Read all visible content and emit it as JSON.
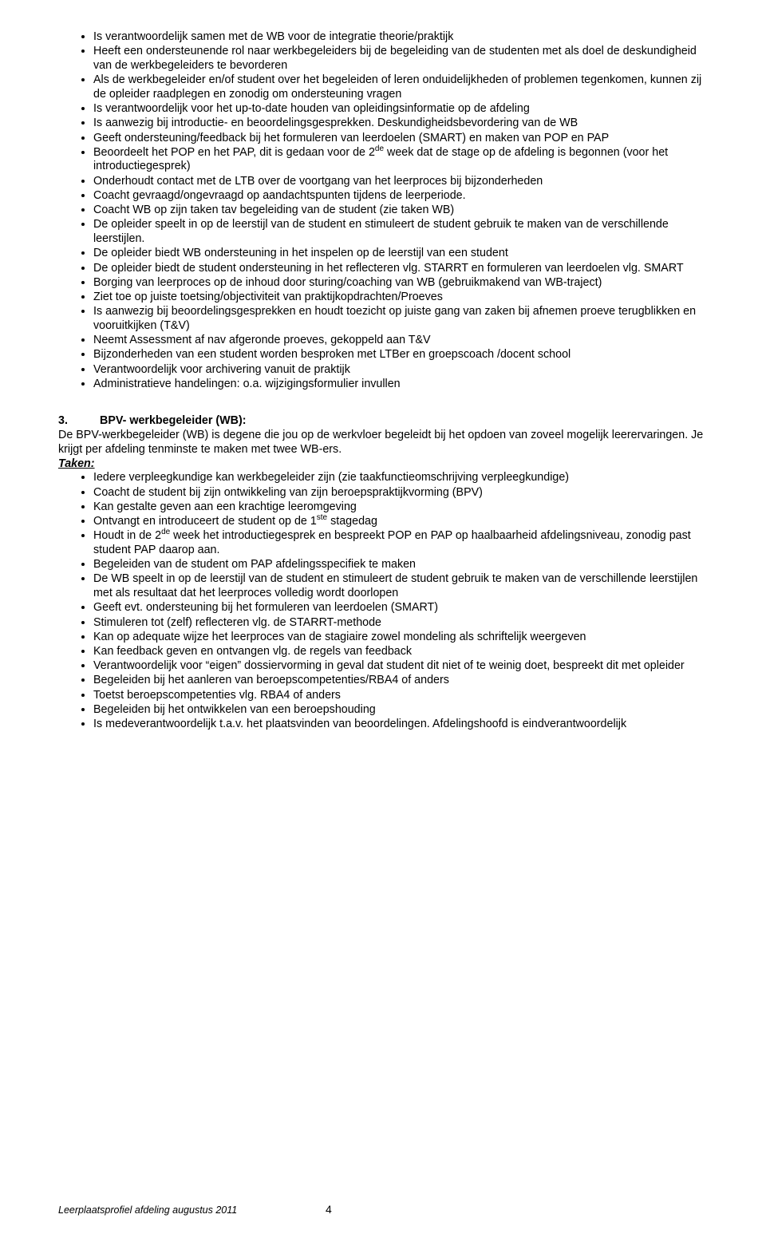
{
  "list1": [
    "Is verantwoordelijk samen met de WB voor de integratie theorie/praktijk",
    "Heeft een ondersteunende rol naar werkbegeleiders bij de begeleiding van de studenten met als doel de deskundigheid van de werkbegeleiders te bevorderen",
    "Als de werkbegeleider en/of student over het begeleiden of leren onduidelijkheden of problemen tegenkomen, kunnen zij de opleider raadplegen en zonodig om ondersteuning vragen",
    "Is verantwoordelijk voor het up-to-date houden van opleidingsinformatie op de afdeling",
    "Is aanwezig bij introductie- en beoordelingsgesprekken. Deskundigheidsbevordering van de WB",
    "Geeft  ondersteuning/feedback bij het formuleren van leerdoelen (SMART) en maken van POP en PAP",
    {
      "html": "Beoordeelt het POP en het PAP, dit is gedaan voor de 2<sup>de</sup> week dat de stage op de afdeling is begonnen (voor het introductiegesprek)"
    },
    "Onderhoudt contact met de LTB over de voortgang van het leerproces bij bijzonderheden",
    "Coacht gevraagd/ongevraagd op aandachtspunten tijdens de leerperiode.",
    "Coacht WB op zijn taken tav begeleiding van de student (zie taken WB)",
    "De opleider speelt in op de leerstijl van de student en stimuleert de student gebruik te maken van de verschillende leerstijlen.",
    "De opleider biedt WB ondersteuning in het inspelen op de leerstijl van een student",
    "De opleider biedt de student ondersteuning in het reflecteren vlg. STARRT en formuleren van leerdoelen vlg. SMART",
    "Borging van leerproces op de inhoud door sturing/coaching van WB (gebruikmakend van WB-traject)",
    "Ziet toe op juiste toetsing/objectiviteit van praktijkopdrachten/Proeves",
    "Is aanwezig bij beoordelingsgesprekken en houdt toezicht op juiste gang van zaken bij afnemen proeve terugblikken en vooruitkijken (T&V)",
    "Neemt Assessment af nav afgeronde proeves, gekoppeld aan T&V",
    "Bijzonderheden van een student worden besproken met LTBer en groepscoach /docent school",
    "Verantwoordelijk voor archivering vanuit de praktijk",
    "Administratieve handelingen: o.a. wijzigingsformulier invullen"
  ],
  "section2": {
    "num": "3.",
    "title": "BPV- werkbegeleider (WB):",
    "intro": "De BPV-werkbegeleider (WB) is degene die jou op de werkvloer begeleidt bij het opdoen van zoveel mogelijk leerervaringen. Je krijgt per afdeling tenminste te maken met twee WB-ers.",
    "taken_label": "Taken:"
  },
  "list2": [
    "Iedere verpleegkundige kan werkbegeleider zijn (zie taakfunctieomschrijving verpleegkundige)",
    "Coacht de student bij zijn ontwikkeling van zijn beroepspraktijkvorming (BPV)",
    "Kan gestalte geven aan een krachtige leeromgeving",
    {
      "html": "Ontvangt en introduceert de student op de 1<sup>ste</sup> stagedag"
    },
    {
      "html": "Houdt in de 2<sup>de</sup> week het introductiegesprek en bespreekt POP en PAP op haalbaarheid afdelingsniveau, zonodig  past student PAP daarop aan."
    },
    "Begeleiden van de student om PAP afdelingsspecifiek te maken",
    "De WB speelt in op de leerstijl van de student en stimuleert de student gebruik te maken van de verschillende leerstijlen met als resultaat dat het leerproces volledig wordt doorlopen",
    "Geeft evt. ondersteuning bij het formuleren van leerdoelen (SMART)",
    "Stimuleren tot (zelf) reflecteren vlg. de STARRT-methode",
    "Kan op adequate wijze het leerproces van de stagiaire zowel mondeling als schriftelijk weergeven",
    "Kan feedback geven en ontvangen vlg. de regels van feedback",
    "Verantwoordelijk voor “eigen” dossiervorming in geval dat student dit niet of te weinig doet, bespreekt dit met opleider",
    "Begeleiden bij het aanleren van beroepscompetenties/RBA4 of anders",
    "Toetst beroepscompetenties vlg. RBA4 of anders",
    "Begeleiden bij het ontwikkelen van een beroepshouding",
    "Is medeverantwoordelijk t.a.v. het plaatsvinden van beoordelingen. Afdelingshoofd is eindverantwoordelijk"
  ],
  "footer": {
    "text": "Leerplaatsprofiel afdeling augustus 2011",
    "page": "4"
  }
}
